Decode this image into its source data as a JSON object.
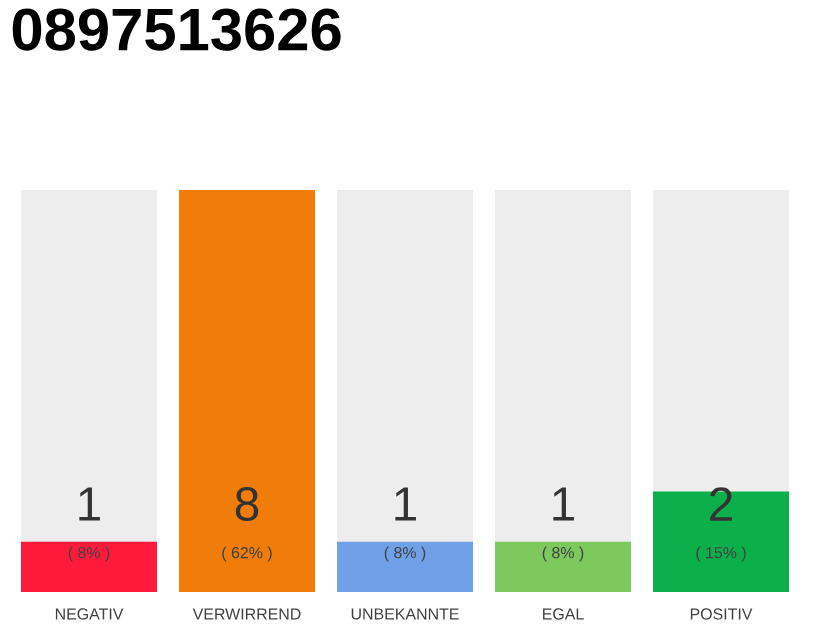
{
  "chart_data": {
    "type": "bar",
    "title": "0897513626",
    "categories": [
      "NEGATIV",
      "VERWIRREND",
      "UNBEKANNTE",
      "EGAL",
      "POSITIV"
    ],
    "values": [
      1,
      8,
      1,
      1,
      2
    ],
    "colors": [
      "#ff1a3c",
      "#f07d0a",
      "#6fa0e8",
      "#7dc95e",
      "#0cb04a"
    ],
    "ylim": [
      0,
      8
    ],
    "tick_labels": "x",
    "data_labels": true,
    "annotations": [
      "( 8% )",
      "( 62% )",
      "( 8% )",
      "( 8% )",
      "( 15% )"
    ]
  }
}
